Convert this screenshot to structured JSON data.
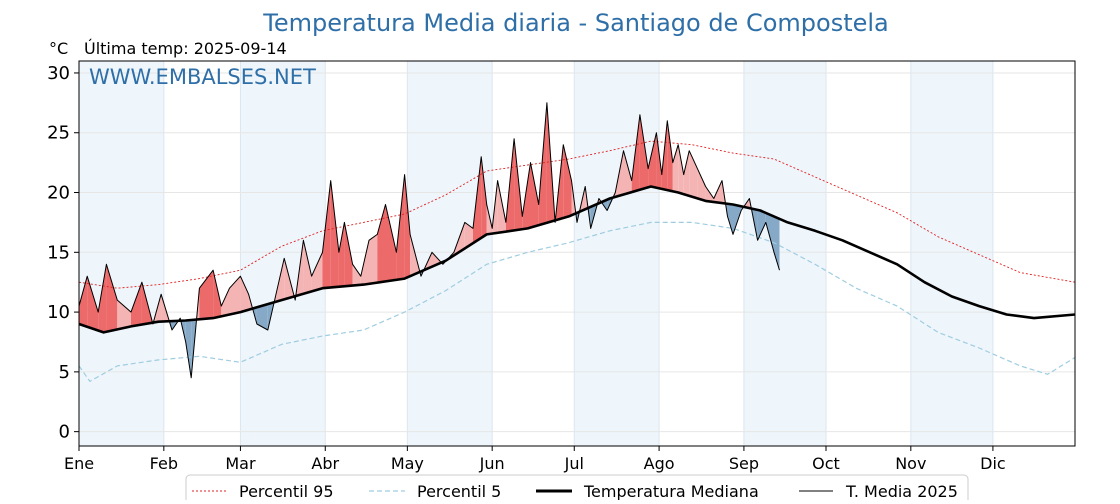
{
  "title": "Temperatura Media diaria - Santiago de Compostela",
  "unit_label": "°C",
  "last_temp": "Última temp: 2025-09-14",
  "watermark": "WWW.EMBALSES.NET",
  "colors": {
    "title": "#2f6fa8",
    "p95": "#e02020",
    "p5": "#9fcde0",
    "median": "#000000",
    "current": "#000000",
    "fill_above": "#f4b4b4",
    "fill_above_strong": "#ec6a6a",
    "fill_below": "#86a9c8",
    "alt_month_band": "#eef5fb"
  },
  "legend": {
    "p95": "Percentil 95",
    "p5": "Percentil 5",
    "median": "Temperatura Mediana",
    "current": "T. Media 2025"
  },
  "chart_data": {
    "type": "line",
    "title": "Temperatura Media diaria - Santiago de Compostela",
    "ylabel": "°C",
    "xlabel": "",
    "ylim": [
      -1.2,
      31
    ],
    "yticks": [
      0,
      5,
      10,
      15,
      20,
      25,
      30
    ],
    "grid": true,
    "legend_position": "bottom",
    "months": [
      "Ene",
      "Feb",
      "Mar",
      "Abr",
      "May",
      "Jun",
      "Jul",
      "Ago",
      "Sep",
      "Oct",
      "Nov",
      "Dic"
    ],
    "month_start_days": [
      1,
      32,
      60,
      91,
      121,
      152,
      182,
      213,
      244,
      274,
      305,
      335
    ],
    "day_range": [
      1,
      365
    ],
    "series": [
      {
        "name": "Percentil 95",
        "key": "p95",
        "x": [
          1,
          15,
          30,
          45,
          60,
          75,
          90,
          105,
          120,
          135,
          150,
          165,
          180,
          195,
          210,
          225,
          240,
          255,
          270,
          285,
          300,
          315,
          330,
          345,
          365
        ],
        "values": [
          12.5,
          12.0,
          12.3,
          12.8,
          13.5,
          15.5,
          16.8,
          17.5,
          18.2,
          19.8,
          21.8,
          22.3,
          22.8,
          23.5,
          24.3,
          24.0,
          23.3,
          22.8,
          21.3,
          19.8,
          18.3,
          16.3,
          14.8,
          13.3,
          12.5
        ]
      },
      {
        "name": "Percentil 5",
        "key": "p5",
        "x": [
          1,
          5,
          15,
          30,
          45,
          60,
          75,
          90,
          105,
          120,
          135,
          150,
          165,
          180,
          195,
          210,
          225,
          240,
          255,
          270,
          285,
          300,
          315,
          330,
          345,
          355,
          365
        ],
        "values": [
          5.5,
          4.2,
          5.5,
          6.0,
          6.3,
          5.8,
          7.3,
          8.0,
          8.5,
          10.0,
          11.8,
          14.0,
          15.0,
          15.8,
          16.8,
          17.5,
          17.5,
          17.0,
          15.8,
          14.0,
          12.0,
          10.5,
          8.3,
          7.0,
          5.5,
          4.8,
          6.2
        ]
      },
      {
        "name": "Temperatura Mediana",
        "key": "median",
        "x": [
          1,
          10,
          20,
          30,
          40,
          50,
          60,
          75,
          90,
          105,
          120,
          135,
          150,
          165,
          180,
          195,
          210,
          220,
          230,
          240,
          250,
          260,
          270,
          280,
          290,
          300,
          310,
          320,
          330,
          340,
          350,
          365
        ],
        "values": [
          9.0,
          8.3,
          8.8,
          9.2,
          9.3,
          9.5,
          10.0,
          11.0,
          12.0,
          12.3,
          12.8,
          14.3,
          16.5,
          17.0,
          18.0,
          19.5,
          20.5,
          20.0,
          19.3,
          19.0,
          18.5,
          17.5,
          16.8,
          16.0,
          15.0,
          14.0,
          12.5,
          11.3,
          10.5,
          9.8,
          9.5,
          9.8
        ]
      },
      {
        "name": "T. Media 2025",
        "key": "current",
        "x": [
          1,
          4,
          8,
          11,
          15,
          20,
          24,
          28,
          31,
          35,
          38,
          40,
          42,
          45,
          50,
          53,
          56,
          60,
          63,
          66,
          70,
          73,
          76,
          80,
          83,
          86,
          90,
          93,
          96,
          98,
          101,
          104,
          107,
          110,
          113,
          117,
          120,
          122,
          126,
          130,
          134,
          138,
          142,
          145,
          148,
          150,
          152,
          154,
          157,
          160,
          163,
          166,
          169,
          172,
          175,
          178,
          181,
          183,
          186,
          188,
          191,
          194,
          197,
          200,
          203,
          206,
          209,
          212,
          214,
          216,
          218,
          220,
          222,
          224,
          227,
          230,
          233,
          236,
          238,
          240,
          243,
          246,
          249,
          252,
          255,
          257
        ],
        "values": [
          10.5,
          13.0,
          10.0,
          14.0,
          11.0,
          10.0,
          12.5,
          9.0,
          11.5,
          8.5,
          9.5,
          7.5,
          4.5,
          12.0,
          13.5,
          10.5,
          12.0,
          13.0,
          11.5,
          9.0,
          8.5,
          11.5,
          14.5,
          11.0,
          16.0,
          13.0,
          15.0,
          21.0,
          15.0,
          17.5,
          14.0,
          13.0,
          16.0,
          16.5,
          19.0,
          15.0,
          21.5,
          16.5,
          13.0,
          15.0,
          14.0,
          15.0,
          17.5,
          17.0,
          23.0,
          19.0,
          17.0,
          21.0,
          17.5,
          24.5,
          18.0,
          22.5,
          19.0,
          27.5,
          17.5,
          24.0,
          21.0,
          17.5,
          20.5,
          17.0,
          19.5,
          18.5,
          20.0,
          23.5,
          21.0,
          26.5,
          22.0,
          25.0,
          21.5,
          26.0,
          22.5,
          24.0,
          21.5,
          23.5,
          22.0,
          20.5,
          19.5,
          21.0,
          18.0,
          16.5,
          18.5,
          19.5,
          16.0,
          17.5,
          15.0,
          13.5
        ]
      }
    ]
  }
}
